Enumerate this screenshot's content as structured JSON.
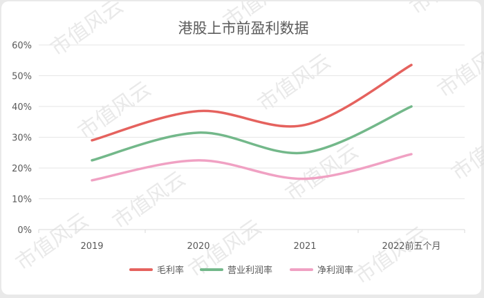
{
  "chart_data": {
    "type": "line",
    "title": "港股上市前盈利数据",
    "categories": [
      "2019",
      "2020",
      "2021",
      "2022前五个月"
    ],
    "y_ticks": [
      "0%",
      "10%",
      "20%",
      "30%",
      "40%",
      "50%",
      "60%"
    ],
    "ylim": [
      0,
      60
    ],
    "unit": "%",
    "grid": true,
    "legend_position": "bottom",
    "series": [
      {
        "name": "毛利率",
        "values": [
          29,
          38.5,
          34,
          53.5
        ],
        "color": "#e5625e"
      },
      {
        "name": "营业利润率",
        "values": [
          22.5,
          31.5,
          25,
          40
        ],
        "color": "#73b88a"
      },
      {
        "name": "净利润率",
        "values": [
          16,
          22.5,
          16.5,
          24.5
        ],
        "color": "#f0a1c3"
      }
    ]
  },
  "watermark": "市值风云"
}
